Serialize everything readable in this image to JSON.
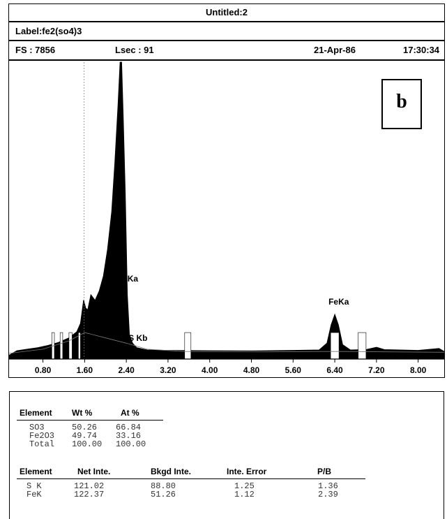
{
  "header": {
    "title": "Untitled:2",
    "label": "Label:fe2(so4)3",
    "fs": "FS : 7856",
    "lsec": "Lsec : 91",
    "date": "21-Apr-86",
    "time": "17:30:34"
  },
  "panel_letter": "b",
  "chart_data": {
    "type": "area",
    "x_ticks": [
      "0.80",
      "1.60",
      "2.40",
      "3.20",
      "4.00",
      "4.80",
      "5.60",
      "6.40",
      "7.20",
      "8.00"
    ],
    "xlim": [
      0.15,
      8.5
    ],
    "ylim": [
      0,
      7856
    ],
    "marker_line_x": 1.59,
    "peaks": [
      {
        "label": "S Ka",
        "x": 2.31,
        "y": 7856
      },
      {
        "label": "S Kb",
        "x": 2.46,
        "y": 650
      },
      {
        "label": "FeKa",
        "x": 6.4,
        "y": 1180
      }
    ],
    "spectrum": [
      [
        0.15,
        100
      ],
      [
        0.3,
        220
      ],
      [
        0.5,
        260
      ],
      [
        0.7,
        300
      ],
      [
        0.9,
        360
      ],
      [
        1.1,
        440
      ],
      [
        1.3,
        560
      ],
      [
        1.45,
        720
      ],
      [
        1.52,
        940
      ],
      [
        1.58,
        1560
      ],
      [
        1.62,
        1350
      ],
      [
        1.66,
        1300
      ],
      [
        1.72,
        1700
      ],
      [
        1.8,
        1550
      ],
      [
        1.88,
        1800
      ],
      [
        1.96,
        2200
      ],
      [
        2.04,
        2900
      ],
      [
        2.12,
        3900
      ],
      [
        2.18,
        5200
      ],
      [
        2.24,
        6700
      ],
      [
        2.28,
        7856
      ],
      [
        2.31,
        7856
      ],
      [
        2.34,
        6400
      ],
      [
        2.38,
        4400
      ],
      [
        2.42,
        1700
      ],
      [
        2.46,
        650
      ],
      [
        2.52,
        420
      ],
      [
        2.6,
        300
      ],
      [
        2.8,
        240
      ],
      [
        3.2,
        230
      ],
      [
        4.0,
        220
      ],
      [
        4.8,
        215
      ],
      [
        5.6,
        230
      ],
      [
        6.1,
        240
      ],
      [
        6.25,
        420
      ],
      [
        6.33,
        900
      ],
      [
        6.4,
        1180
      ],
      [
        6.47,
        900
      ],
      [
        6.55,
        380
      ],
      [
        6.7,
        240
      ],
      [
        7.0,
        250
      ],
      [
        7.2,
        310
      ],
      [
        7.35,
        250
      ],
      [
        8.0,
        230
      ],
      [
        8.4,
        280
      ],
      [
        8.5,
        200
      ]
    ]
  },
  "composition_table": {
    "headers": [
      "Element",
      "Wt %",
      "At %"
    ],
    "rows": [
      [
        "SO3",
        "50.26",
        "66.84"
      ],
      [
        "Fe2O3",
        "49.74",
        "33.16"
      ],
      [
        "Total",
        "100.00",
        "100.00"
      ]
    ]
  },
  "intensity_table": {
    "headers": [
      "Element",
      "Net Inte.",
      "Bkgd Inte.",
      "Inte. Error",
      "P/B"
    ],
    "rows": [
      [
        "S K",
        "121.02",
        "88.80",
        "1.25",
        "1.36"
      ],
      [
        "FeK",
        "122.37",
        "51.26",
        "1.12",
        "2.39"
      ]
    ]
  }
}
